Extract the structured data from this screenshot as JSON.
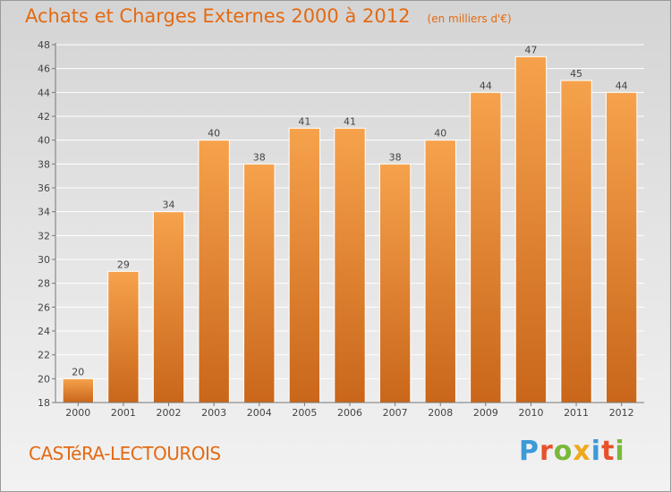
{
  "header": {
    "title": "Achats et Charges Externes 2000 à 2012",
    "unit": "(en milliers d'€)"
  },
  "footer": {
    "city": "CASTéRA-LECTOUROIS",
    "brand": "Proxiti",
    "brand_colors": [
      "#3b9ad8",
      "#e8512b",
      "#7ab83a",
      "#f0a81c",
      "#3b9ad8",
      "#e8512b",
      "#7ab83a"
    ]
  },
  "colors": {
    "accent": "#e46a12",
    "bar_top": "#f6a24c",
    "bar_bottom": "#c9661a"
  },
  "chart_data": {
    "type": "bar",
    "categories": [
      "2000",
      "2001",
      "2002",
      "2003",
      "2004",
      "2005",
      "2006",
      "2007",
      "2008",
      "2009",
      "2010",
      "2011",
      "2012"
    ],
    "values": [
      20,
      29,
      34,
      40,
      38,
      41,
      41,
      38,
      40,
      44,
      47,
      45,
      44
    ],
    "title": "Achats et Charges Externes 2000 à 2012",
    "ylim": [
      18,
      48
    ],
    "yticks": [
      18,
      20,
      22,
      24,
      26,
      28,
      30,
      32,
      34,
      36,
      38,
      40,
      42,
      44,
      46,
      48
    ],
    "grid": true,
    "data_labels": true
  }
}
